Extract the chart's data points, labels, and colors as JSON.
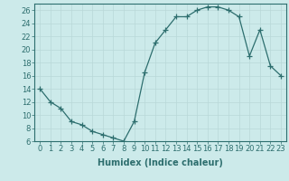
{
  "xlabel": "Humidex (Indice chaleur)",
  "ylabel": "",
  "x_values": [
    0,
    1,
    2,
    3,
    4,
    5,
    6,
    7,
    8,
    9,
    10,
    11,
    12,
    13,
    14,
    15,
    16,
    17,
    18,
    19,
    20,
    21,
    22,
    23
  ],
  "y_values": [
    14,
    12,
    11,
    9,
    8.5,
    7.5,
    7,
    6.5,
    6,
    9,
    16.5,
    21,
    23,
    25,
    25,
    26,
    26.5,
    26.5,
    26,
    25,
    19,
    23,
    17.5,
    16
  ],
  "line_color": "#2d6e6e",
  "marker": "+",
  "marker_size": 4,
  "bg_color": "#cceaea",
  "grid_color": "#b8d8d8",
  "axis_color": "#2d6e6e",
  "tick_color": "#2d6e6e",
  "label_color": "#2d6e6e",
  "ylim": [
    6,
    27
  ],
  "yticks": [
    6,
    8,
    10,
    12,
    14,
    16,
    18,
    20,
    22,
    24,
    26
  ],
  "xlim": [
    -0.5,
    23.5
  ],
  "xticks": [
    0,
    1,
    2,
    3,
    4,
    5,
    6,
    7,
    8,
    9,
    10,
    11,
    12,
    13,
    14,
    15,
    16,
    17,
    18,
    19,
    20,
    21,
    22,
    23
  ],
  "font_size": 6,
  "xlabel_fontsize": 7
}
